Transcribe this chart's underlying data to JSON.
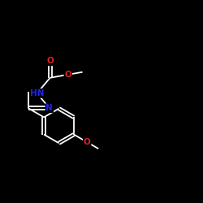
{
  "bg_color": "#000000",
  "bond_color": "#ffffff",
  "atom_colors": {
    "O": "#dd2222",
    "N": "#2222ee",
    "C": "#ffffff"
  },
  "figsize": [
    2.5,
    2.5
  ],
  "dpi": 100,
  "bond_lw": 1.3,
  "font_size": 7.5
}
